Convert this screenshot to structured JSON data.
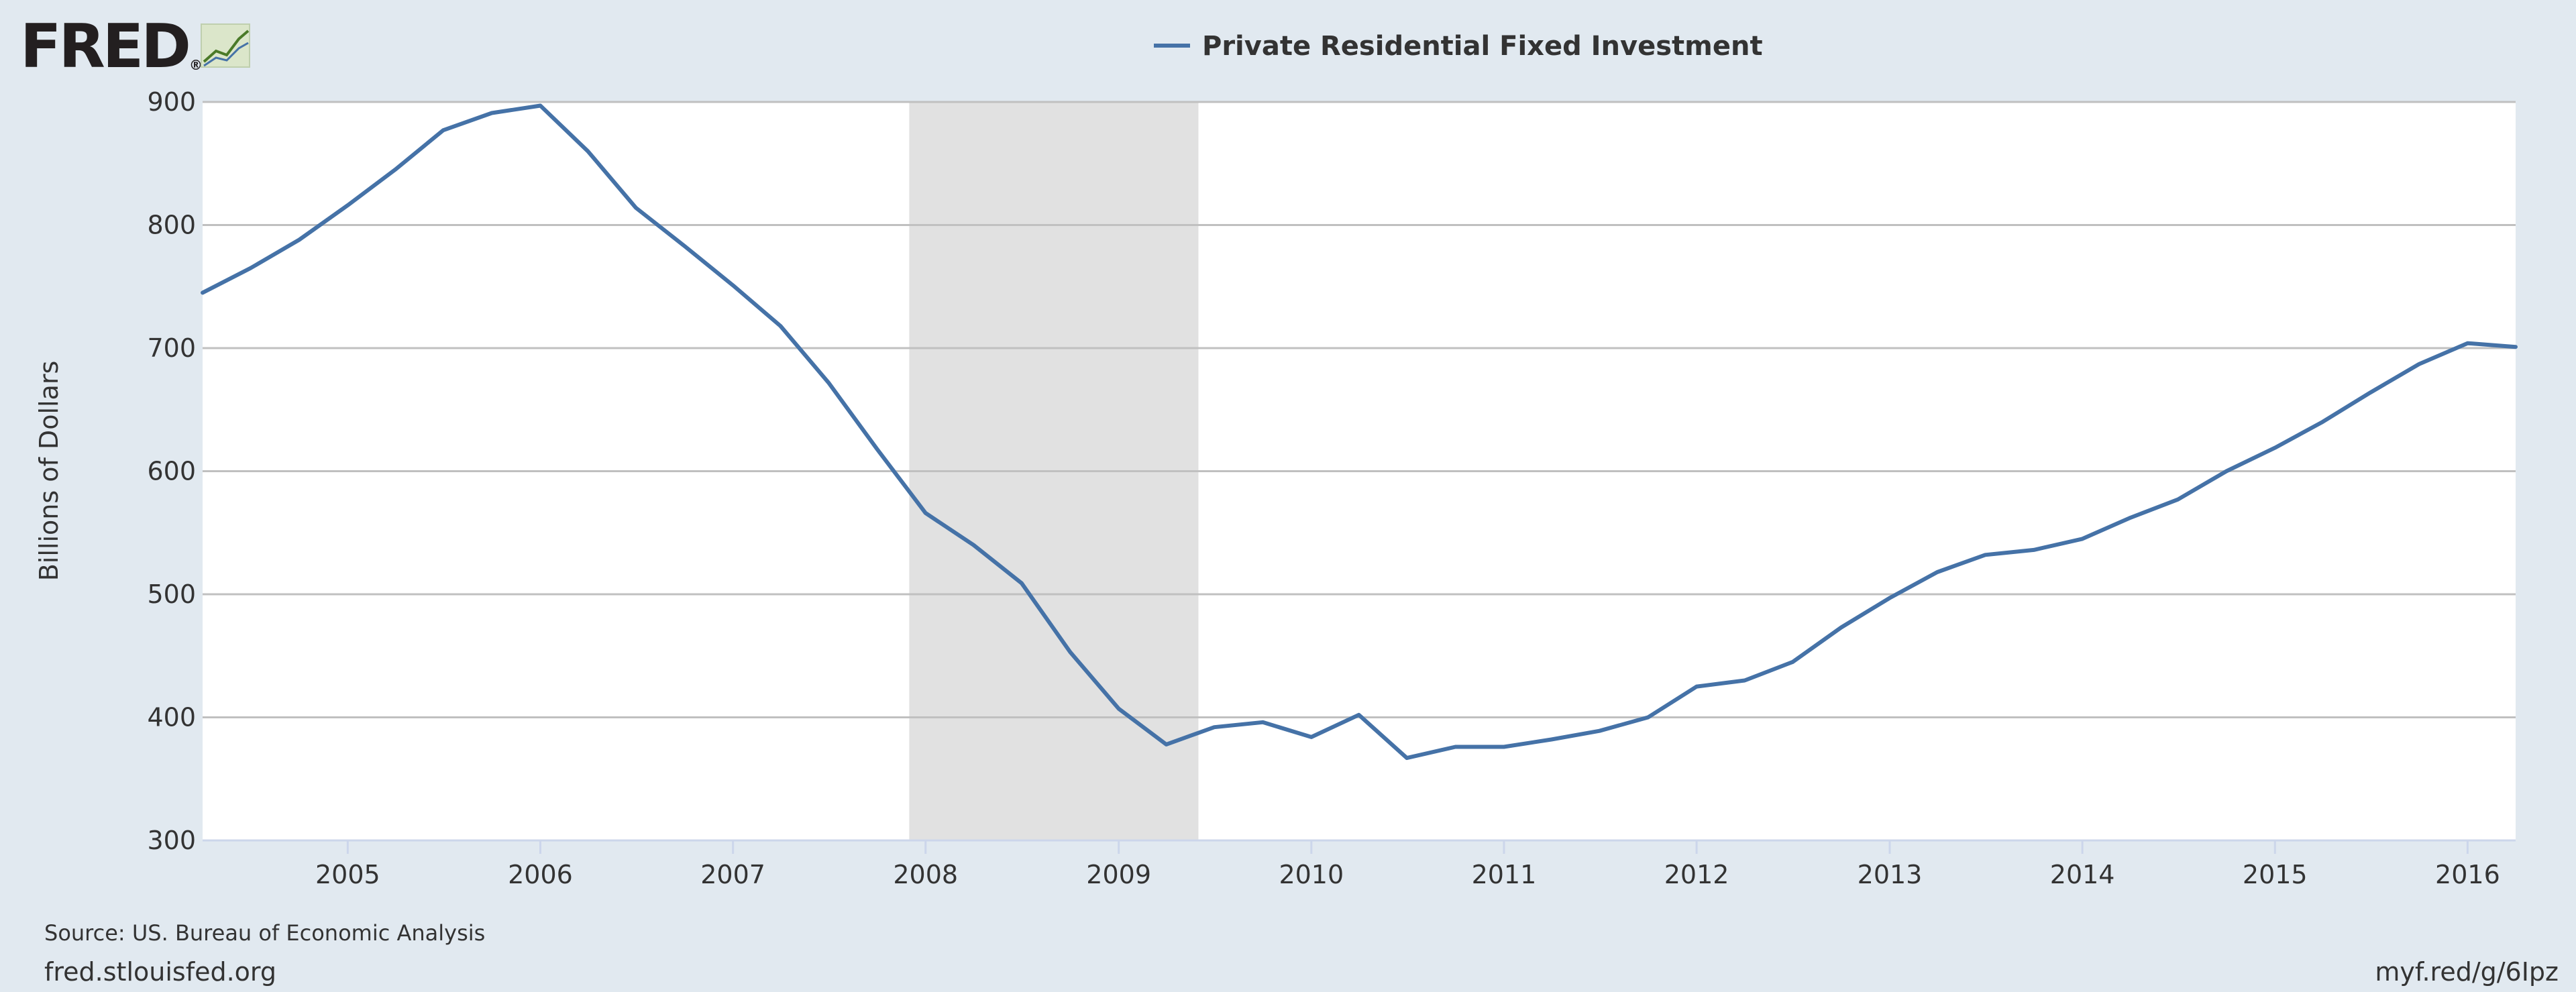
{
  "header": {
    "logo_text": "FRED",
    "logo_registered": "®"
  },
  "footer": {
    "source": "Source: US. Bureau of Economic Analysis",
    "site": "fred.stlouisfed.org",
    "short_url": "myf.red/g/6Ipz"
  },
  "colors": {
    "series": "#4572a7",
    "recession": "#e1e1e1",
    "background": "#e1e9f0",
    "plot_background": "#ffffff",
    "grid": "#c0c0c0"
  },
  "chart_data": {
    "type": "line",
    "title": "",
    "xlabel": "",
    "ylabel": "Billions of Dollars",
    "ylim": [
      300,
      900
    ],
    "yticks": [
      "300",
      "400",
      "500",
      "600",
      "700",
      "800",
      "900"
    ],
    "xticks": [
      "2005",
      "2006",
      "2007",
      "2008",
      "2009",
      "2010",
      "2011",
      "2012",
      "2013",
      "2014",
      "2015",
      "2016"
    ],
    "xlim": [
      "2004-04-01",
      "2016-04-01"
    ],
    "grid": true,
    "legend_position": "top-center",
    "recession": {
      "start": "2007-12-01",
      "end": "2009-06-01"
    },
    "series": [
      {
        "name": "Private Residential Fixed Investment",
        "x": [
          "2004-04-01",
          "2004-07-01",
          "2004-10-01",
          "2005-01-01",
          "2005-04-01",
          "2005-07-01",
          "2005-10-01",
          "2006-01-01",
          "2006-04-01",
          "2006-07-01",
          "2006-10-01",
          "2007-01-01",
          "2007-04-01",
          "2007-07-01",
          "2007-10-01",
          "2008-01-01",
          "2008-04-01",
          "2008-07-01",
          "2008-10-01",
          "2009-01-01",
          "2009-04-01",
          "2009-07-01",
          "2009-10-01",
          "2010-01-01",
          "2010-04-01",
          "2010-07-01",
          "2010-10-01",
          "2011-01-01",
          "2011-04-01",
          "2011-07-01",
          "2011-10-01",
          "2012-01-01",
          "2012-04-01",
          "2012-07-01",
          "2012-10-01",
          "2013-01-01",
          "2013-04-01",
          "2013-07-01",
          "2013-10-01",
          "2014-01-01",
          "2014-04-01",
          "2014-07-01",
          "2014-10-01",
          "2015-01-01",
          "2015-04-01",
          "2015-07-01",
          "2015-10-01",
          "2016-01-01",
          "2016-04-01"
        ],
        "y": [
          745,
          765,
          788,
          816,
          845,
          877,
          891,
          897,
          860,
          814,
          783,
          751,
          718,
          672,
          618,
          566,
          540,
          509,
          453,
          407,
          378,
          392,
          396,
          384,
          402,
          367,
          376,
          376,
          382,
          389,
          400,
          425,
          430,
          445,
          473,
          497,
          518,
          532,
          536,
          545,
          562,
          577,
          600,
          619,
          640,
          664,
          687,
          704,
          701
        ]
      }
    ]
  }
}
